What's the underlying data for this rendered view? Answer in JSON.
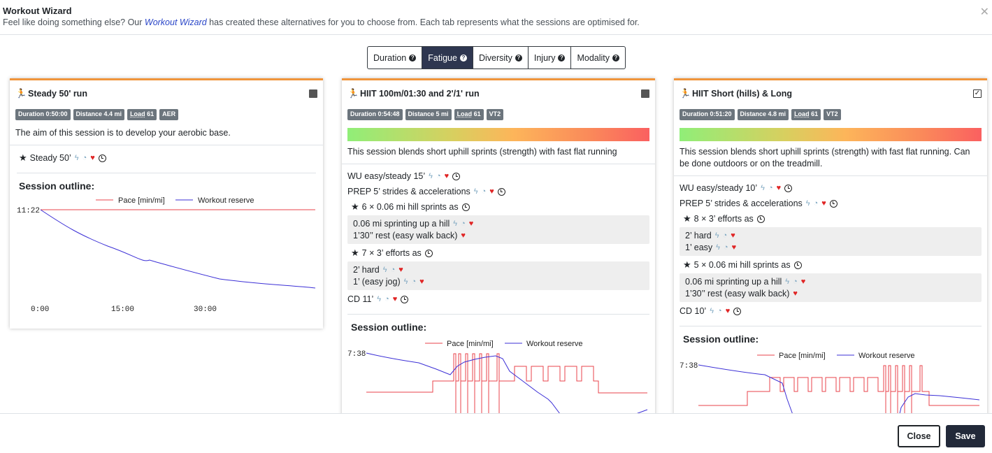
{
  "modal": {
    "title": "Workout Wizard",
    "subtitle_pre": "Feel like doing something else? Our ",
    "subtitle_link": "Workout Wizard",
    "subtitle_post": " has created these alternatives for you to choose from. Each tab represents what the sessions are optimised for.",
    "close_glyph": "✕"
  },
  "tabs": [
    {
      "label": "Duration",
      "active": false
    },
    {
      "label": "Fatigue",
      "active": true
    },
    {
      "label": "Diversity",
      "active": false
    },
    {
      "label": "Injury",
      "active": false
    },
    {
      "label": "Modality",
      "active": false
    }
  ],
  "icons": {
    "run": "running-icon",
    "star": "star-icon",
    "bolt": "bolt-icon",
    "gauge": "gauge-icon",
    "heart": "heart-icon",
    "clock": "clock-icon",
    "help": "question-circle-icon"
  },
  "colors": {
    "accent": "#f0943a",
    "active_tab": "#2e3650",
    "pace_line": "#e8434b",
    "reserve_line": "#3b2fd6",
    "heart": "#e02525"
  },
  "cards": [
    {
      "title": "Steady 50' run",
      "checked": false,
      "badges": {
        "duration": "Duration 0:50:00",
        "distance": "Distance 4.4 mi",
        "load_label": "Load",
        "load_value": "61",
        "zone": "AER"
      },
      "description": "The aim of this session is to develop your aerobic base.",
      "steps": [
        {
          "text": "Steady 50’",
          "star": true
        }
      ],
      "outline_title": "Session outline:",
      "legend": {
        "pace": "Pace [min/mi]",
        "reserve": "Workout reserve"
      },
      "y_tick": "11:22",
      "x_ticks": [
        "0:00",
        "15:00",
        "30:00"
      ]
    },
    {
      "title": "HIIT 100m/01:30 and 2'/1' run",
      "checked": false,
      "badges": {
        "duration": "Duration 0:54:48",
        "distance": "Distance 5 mi",
        "load_label": "Load",
        "load_value": "61",
        "zone": "VT2"
      },
      "description": "This session blends short uphill sprints (strength) with fast flat running",
      "steps": {
        "wu": "WU easy/steady 15’",
        "prep": "PREP 5’ strides & accelerations",
        "set1": "6 × 0.06 mi hill sprints as",
        "set1_a": "0.06 mi sprinting up a hill",
        "set1_b": "1’30’’ rest (easy walk back)",
        "set2": "7 × 3’ efforts as",
        "set2_a": "2’ hard",
        "set2_b": "1’ (easy jog)",
        "cd": "CD 11’"
      },
      "outline_title": "Session outline:",
      "legend": {
        "pace": "Pace [min/mi]",
        "reserve": "Workout reserve"
      },
      "y_tick": "7:38"
    },
    {
      "title": "HIIT Short (hills) & Long",
      "checked": true,
      "badges": {
        "duration": "Duration 0:51:20",
        "distance": "Distance 4.8 mi",
        "load_label": "Load",
        "load_value": "61",
        "zone": "VT2"
      },
      "description": "This session blends short uphill sprints (strength) with fast flat running. Can be done outdoors or on the treadmill.",
      "steps": {
        "wu": "WU easy/steady 10’",
        "prep": "PREP 5’ strides & accelerations",
        "set1": "8 × 3’ efforts as",
        "set1_a": "2’ hard",
        "set1_b": "1’ easy",
        "set2": "5 × 0.06 mi hill sprints as",
        "set2_a": "0.06 mi sprinting up a hill",
        "set2_b": "1’30’’ rest (easy walk back)",
        "cd": "CD 10’"
      },
      "outline_title": "Session outline:",
      "legend": {
        "pace": "Pace [min/mi]",
        "reserve": "Workout reserve"
      },
      "y_tick": "7:38"
    }
  ],
  "footer": {
    "close_label": "Close",
    "save_label": "Save"
  }
}
